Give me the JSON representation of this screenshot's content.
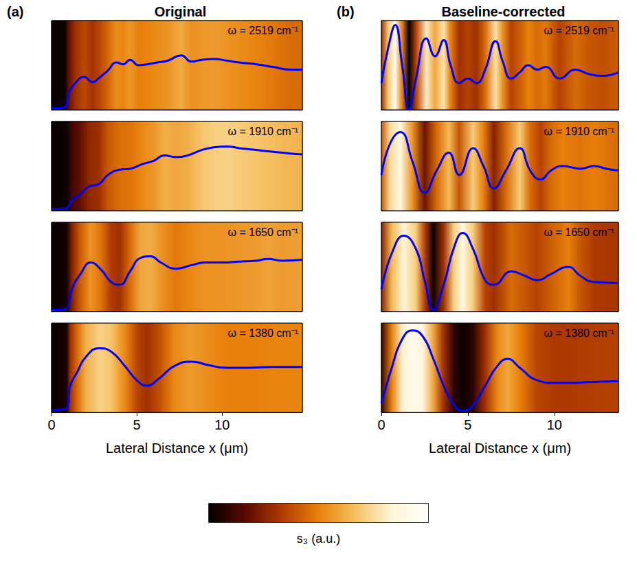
{
  "chart_data": [
    {
      "type": "line",
      "label": "(a)",
      "title": "Original",
      "xlabel": "Lateral Distance x (μm)",
      "xlim": [
        0,
        14.7
      ],
      "xticks": [
        0,
        5,
        10
      ],
      "ylim": [
        0,
        1
      ],
      "color": "#0000ff",
      "strips": [
        {
          "annotation": "ω = 2519 cm⁻¹",
          "tick_labels": false,
          "x": [
            0,
            0.5,
            0.8,
            1.0,
            1.4,
            1.9,
            2.4,
            2.8,
            3.3,
            3.8,
            4.2,
            4.6,
            5.1,
            5.6,
            6.2,
            6.8,
            7.6,
            8.2,
            8.8,
            9.5,
            10.3,
            11,
            12,
            13,
            14,
            14.7
          ],
          "values": [
            0.02,
            0.02,
            0.03,
            0.18,
            0.3,
            0.37,
            0.31,
            0.36,
            0.44,
            0.53,
            0.51,
            0.56,
            0.5,
            0.51,
            0.53,
            0.55,
            0.61,
            0.54,
            0.56,
            0.57,
            0.55,
            0.53,
            0.51,
            0.48,
            0.45,
            0.45
          ]
        },
        {
          "annotation": "ω = 1910 cm⁻¹",
          "tick_labels": false,
          "x": [
            0,
            0.5,
            0.9,
            1.2,
            1.6,
            2.2,
            2.8,
            3.3,
            4.0,
            4.6,
            5.3,
            6.0,
            6.6,
            7.3,
            8.0,
            8.8,
            9.5,
            10.3,
            11,
            12,
            13,
            14,
            14.7
          ],
          "values": [
            0.02,
            0.02,
            0.03,
            0.12,
            0.17,
            0.27,
            0.3,
            0.4,
            0.46,
            0.47,
            0.52,
            0.56,
            0.62,
            0.6,
            0.62,
            0.68,
            0.71,
            0.72,
            0.7,
            0.68,
            0.66,
            0.64,
            0.63
          ]
        },
        {
          "annotation": "ω = 1650 cm⁻¹",
          "tick_labels": false,
          "x": [
            0,
            0.5,
            0.9,
            1.2,
            1.7,
            2.3,
            2.9,
            3.5,
            4.0,
            4.6,
            5.2,
            5.8,
            6.4,
            7.3,
            8.2,
            9.0,
            10,
            11,
            12,
            12.7,
            13.5,
            14.7
          ],
          "values": [
            0.02,
            0.02,
            0.04,
            0.25,
            0.42,
            0.55,
            0.47,
            0.33,
            0.3,
            0.45,
            0.6,
            0.62,
            0.55,
            0.48,
            0.52,
            0.55,
            0.55,
            0.56,
            0.57,
            0.59,
            0.57,
            0.58
          ]
        },
        {
          "annotation": "ω = 1380 cm⁻¹",
          "tick_labels": "x",
          "x": [
            0,
            0.5,
            0.9,
            1.1,
            1.5,
            2.0,
            2.8,
            3.5,
            4.3,
            5.0,
            5.6,
            6.3,
            7.2,
            8.2,
            9.2,
            10.2,
            11.5,
            13,
            14.7
          ],
          "values": [
            0.02,
            0.03,
            0.05,
            0.3,
            0.45,
            0.62,
            0.72,
            0.68,
            0.52,
            0.36,
            0.3,
            0.38,
            0.52,
            0.57,
            0.53,
            0.5,
            0.5,
            0.51,
            0.51
          ]
        }
      ]
    },
    {
      "type": "line",
      "label": "(b)",
      "title": "Baseline-corrected",
      "xlabel": "Lateral Distance x (μm)",
      "xlim": [
        0,
        13.7
      ],
      "xticks": [
        0,
        5,
        10
      ],
      "ylim": [
        0,
        1
      ],
      "color": "#0000ff",
      "strips": [
        {
          "annotation": "ω = 2519 cm⁻¹",
          "tick_labels": false,
          "x": [
            0,
            0.4,
            0.8,
            1.2,
            1.6,
            2.0,
            2.6,
            3.1,
            3.6,
            4.0,
            4.5,
            5.0,
            5.5,
            6.0,
            6.6,
            7.0,
            7.5,
            8.0,
            8.5,
            9.0,
            9.5,
            10.3,
            11.2,
            12.0,
            12.8,
            13.7
          ],
          "values": [
            0.3,
            0.7,
            0.95,
            0.5,
            0.0,
            0.35,
            0.8,
            0.6,
            0.78,
            0.5,
            0.3,
            0.35,
            0.3,
            0.45,
            0.77,
            0.55,
            0.35,
            0.42,
            0.5,
            0.45,
            0.48,
            0.35,
            0.45,
            0.4,
            0.38,
            0.42
          ]
        },
        {
          "annotation": "ω = 1910 cm⁻¹",
          "tick_labels": false,
          "x": [
            0,
            0.5,
            1.1,
            1.8,
            2.5,
            3.2,
            3.9,
            4.5,
            5.3,
            5.9,
            6.5,
            7.2,
            8.0,
            8.6,
            9.2,
            9.8,
            10.5,
            11.5,
            12.3,
            13.0,
            13.7
          ],
          "values": [
            0.4,
            0.75,
            0.88,
            0.55,
            0.2,
            0.45,
            0.65,
            0.4,
            0.7,
            0.5,
            0.25,
            0.45,
            0.7,
            0.45,
            0.35,
            0.45,
            0.5,
            0.47,
            0.5,
            0.47,
            0.45
          ]
        },
        {
          "annotation": "ω = 1650 cm⁻¹",
          "tick_labels": false,
          "x": [
            0,
            0.6,
            1.3,
            2.0,
            2.5,
            3.0,
            3.6,
            4.2,
            4.7,
            5.3,
            6.0,
            6.5,
            7.5,
            8.3,
            9.0,
            9.8,
            10.8,
            11.5,
            12.3,
            13.7
          ],
          "values": [
            0.25,
            0.65,
            0.85,
            0.7,
            0.35,
            0.02,
            0.3,
            0.72,
            0.88,
            0.7,
            0.35,
            0.3,
            0.45,
            0.4,
            0.35,
            0.42,
            0.5,
            0.4,
            0.33,
            0.32
          ]
        },
        {
          "annotation": "ω = 1380 cm⁻¹",
          "tick_labels": "x",
          "x": [
            0,
            0.6,
            1.2,
            1.8,
            2.4,
            3.0,
            3.6,
            4.2,
            4.7,
            5.3,
            6.0,
            6.7,
            7.3,
            8.0,
            9.0,
            10.0,
            11.0,
            12.0,
            13.7
          ],
          "values": [
            0.1,
            0.5,
            0.82,
            0.92,
            0.85,
            0.6,
            0.3,
            0.08,
            0.02,
            0.08,
            0.3,
            0.52,
            0.6,
            0.5,
            0.36,
            0.33,
            0.33,
            0.34,
            0.35
          ]
        }
      ]
    }
  ],
  "colorbar": {
    "label": "s₃ (a.u.)",
    "range": [
      0,
      1
    ],
    "colors": [
      "#000000",
      "#5a0a00",
      "#b03a00",
      "#e8800a",
      "#f5c060",
      "#fff5d8",
      "#ffffff"
    ]
  }
}
